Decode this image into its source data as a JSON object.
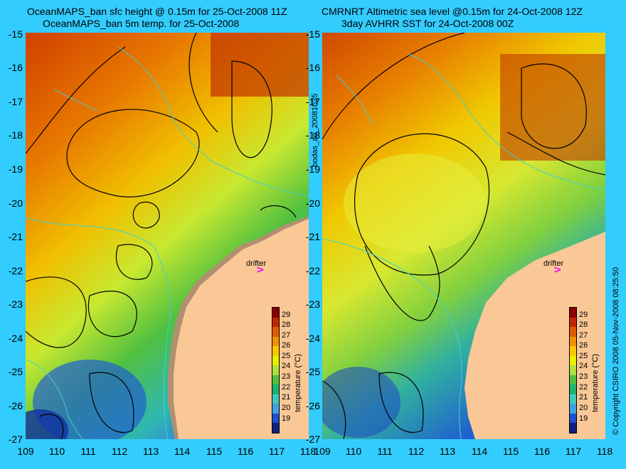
{
  "left_panel": {
    "title_line1": "OceanMAPS_ban sfc height @ 0.15m for 25-Oct-2008 11Z",
    "title_line2": "OceanMAPS_ban 5m temp. for 25-Oct-2008"
  },
  "right_panel": {
    "title_line1": "CMRNRT Altimetric sea level  @0.15m  for 24-Oct-2008 12Z",
    "title_line2": "3day AVHRR SST for 24-Oct-2008 00Z"
  },
  "y_ticks": [
    "-15",
    "-16",
    "-17",
    "-18",
    "-19",
    "-20",
    "-21",
    "-22",
    "-23",
    "-24",
    "-25",
    "-26",
    "-27"
  ],
  "x_ticks": [
    "109",
    "110",
    "111",
    "112",
    "113",
    "114",
    "115",
    "116",
    "117",
    "118"
  ],
  "side_label_center": "bodas_an_20081025",
  "side_label_right": "© Copyright CSIRO 2008  05-Nov-2008 08:25:50",
  "drifter": {
    "label": "drifter",
    "marker": ">"
  },
  "colorbar": {
    "title": "temperature (°C)",
    "ticks": [
      "29",
      "28",
      "27",
      "26",
      "25",
      "24",
      "23",
      "22",
      "21",
      "20",
      "19"
    ],
    "colors": [
      "#8b0000",
      "#c02800",
      "#e05a00",
      "#f09000",
      "#f8c800",
      "#e8f000",
      "#b0e040",
      "#50c040",
      "#20b070",
      "#40c8c0",
      "#40a0e0",
      "#2050d0",
      "#102080"
    ]
  },
  "map_colors": {
    "land": "#fac896",
    "land_shadow": "#b09070",
    "coast_contour": "#40d0d0",
    "contour": "#000000"
  }
}
